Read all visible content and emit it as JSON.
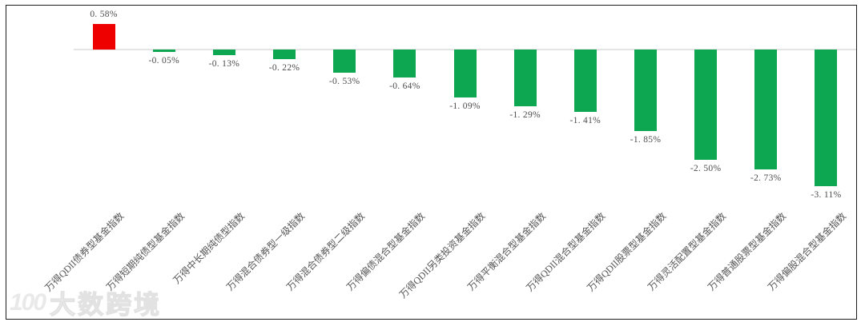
{
  "watermark": {
    "logo_text": "100",
    "brand": "大数跨境"
  },
  "chart_data": {
    "type": "bar",
    "title": "",
    "xlabel": "",
    "ylabel": "",
    "categories": [
      "万得QDII债券型基金指数",
      "万得短期纯债型基金指数",
      "万得中长期纯债型指数",
      "万得混合债券型一级指数",
      "万得混合债券型二级指数",
      "万得偏债混合型基金指数",
      "万得QDII另类投资基金指数",
      "万得平衡混合型基金指数",
      "万得QDII混合型基金指数",
      "万得QDII股票型基金指数",
      "万得灵活配置型基金指数",
      "万得普通股票型基金指数",
      "万得偏股混合型基金指数"
    ],
    "values": [
      0.58,
      -0.05,
      -0.13,
      -0.22,
      -0.53,
      -0.64,
      -1.09,
      -1.29,
      -1.41,
      -1.85,
      -2.5,
      -2.73,
      -3.11
    ],
    "value_labels": [
      "0. 58%",
      "-0. 05%",
      "-0. 13%",
      "-0. 22%",
      "-0. 53%",
      "-0. 64%",
      "-1. 09%",
      "-1. 29%",
      "-1. 41%",
      "-1. 85%",
      "-2. 50%",
      "-2. 73%",
      "-3. 11%"
    ],
    "unit": "%",
    "positive_color": "#ee0000",
    "negative_color": "#0ca750",
    "axis_line_color": "#e4e4e4",
    "label_color": "#4d4d4d",
    "ylim": [
      -3.5,
      1.0
    ],
    "grid": false,
    "legend_position": "none",
    "x_label_rotation_deg": 45
  }
}
